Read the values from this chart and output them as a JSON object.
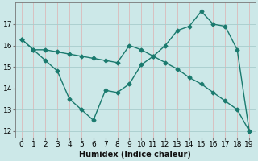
{
  "line1_x": [
    0,
    1,
    2,
    3,
    4,
    5,
    6,
    7,
    8,
    9,
    10,
    11,
    12,
    13,
    14,
    15,
    16,
    17,
    18,
    19
  ],
  "line1_y": [
    16.3,
    15.8,
    15.8,
    15.7,
    15.6,
    15.5,
    15.4,
    15.3,
    15.2,
    16.0,
    15.8,
    15.5,
    15.2,
    14.9,
    14.5,
    14.2,
    13.8,
    13.4,
    13.0,
    12.0
  ],
  "line2_x": [
    0,
    1,
    2,
    3,
    4,
    5,
    6,
    7,
    8,
    9,
    10,
    11,
    12,
    13,
    14,
    15,
    16,
    17,
    18,
    19
  ],
  "line2_y": [
    16.3,
    15.8,
    15.3,
    14.8,
    13.5,
    13.0,
    12.5,
    13.9,
    13.8,
    14.2,
    15.1,
    15.5,
    16.0,
    16.7,
    16.9,
    17.6,
    17.0,
    16.9,
    15.8,
    12.0
  ],
  "color": "#1a7a6e",
  "bg_color": "#cce8e8",
  "hgrid_color": "#a8cccc",
  "vgrid_color": "#dbbaba",
  "xlabel": "Humidex (Indice chaleur)",
  "ylim": [
    11.7,
    18.0
  ],
  "xlim": [
    -0.5,
    19.5
  ],
  "yticks": [
    12,
    13,
    14,
    15,
    16,
    17
  ],
  "xticks": [
    0,
    1,
    2,
    3,
    4,
    5,
    6,
    7,
    8,
    9,
    10,
    11,
    12,
    13,
    14,
    15,
    16,
    17,
    18,
    19
  ],
  "marker": "D",
  "markersize": 2.5,
  "linewidth": 1.0,
  "xlabel_fontsize": 7,
  "tick_fontsize": 6.5
}
